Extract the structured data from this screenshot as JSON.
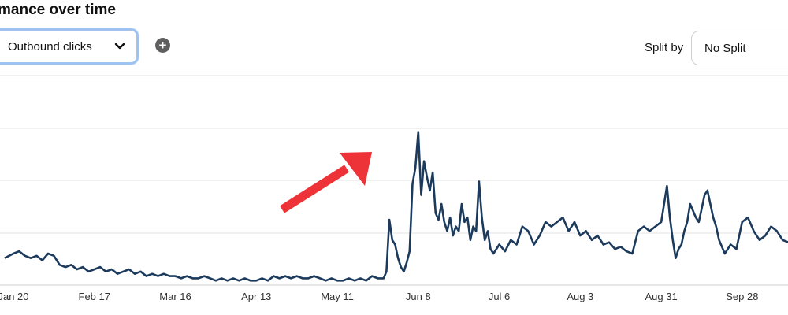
{
  "header": {
    "title": "mance over time"
  },
  "controls": {
    "metric_select": {
      "value": "Outbound clicks",
      "icon": "chevron-down-icon"
    },
    "add_button": {
      "glyph": "+",
      "icon": "plus-circle-icon"
    },
    "split_label": "Split by",
    "split_select": {
      "value": "No Split"
    }
  },
  "colors": {
    "line": "#1b3a5c",
    "grid": "#e3e3e3",
    "arrow": "#ee3338",
    "select_focus": "#9ec3f0"
  },
  "chart_data": {
    "type": "line",
    "title": "",
    "xlabel": "",
    "ylabel": "",
    "grid": true,
    "legend": "none",
    "x_tick_labels": [
      "Jan 20",
      "Feb 17",
      "Mar 16",
      "Apr 13",
      "May 11",
      "Jun 8",
      "Jul 6",
      "Aug 3",
      "Aug 31",
      "Sep 28"
    ],
    "x_tick_days": [
      0,
      28,
      56,
      84,
      112,
      140,
      168,
      196,
      224,
      252
    ],
    "ylim": [
      0,
      100
    ],
    "series": [
      {
        "values": [
          [
            -3,
            12
          ],
          [
            0,
            14
          ],
          [
            2,
            15
          ],
          [
            4,
            13
          ],
          [
            6,
            12
          ],
          [
            8,
            13
          ],
          [
            10,
            11
          ],
          [
            12,
            14
          ],
          [
            14,
            13
          ],
          [
            16,
            9
          ],
          [
            18,
            8
          ],
          [
            20,
            9
          ],
          [
            22,
            7
          ],
          [
            24,
            8
          ],
          [
            26,
            6
          ],
          [
            28,
            7
          ],
          [
            30,
            8
          ],
          [
            32,
            6
          ],
          [
            34,
            7
          ],
          [
            36,
            5
          ],
          [
            38,
            6
          ],
          [
            40,
            7
          ],
          [
            42,
            5
          ],
          [
            44,
            6
          ],
          [
            46,
            4
          ],
          [
            48,
            5
          ],
          [
            50,
            4
          ],
          [
            52,
            5
          ],
          [
            54,
            4
          ],
          [
            56,
            4
          ],
          [
            58,
            3
          ],
          [
            60,
            4
          ],
          [
            62,
            3
          ],
          [
            64,
            3
          ],
          [
            66,
            4
          ],
          [
            68,
            3
          ],
          [
            70,
            2
          ],
          [
            72,
            3
          ],
          [
            74,
            2
          ],
          [
            76,
            3
          ],
          [
            78,
            2
          ],
          [
            80,
            3
          ],
          [
            82,
            2
          ],
          [
            84,
            2
          ],
          [
            86,
            3
          ],
          [
            88,
            2
          ],
          [
            90,
            4
          ],
          [
            92,
            3
          ],
          [
            94,
            4
          ],
          [
            96,
            3
          ],
          [
            98,
            4
          ],
          [
            100,
            3
          ],
          [
            102,
            3
          ],
          [
            104,
            4
          ],
          [
            106,
            3
          ],
          [
            108,
            2
          ],
          [
            110,
            3
          ],
          [
            112,
            2
          ],
          [
            114,
            2
          ],
          [
            116,
            3
          ],
          [
            118,
            2
          ],
          [
            120,
            3
          ],
          [
            122,
            2
          ],
          [
            124,
            4
          ],
          [
            126,
            3
          ],
          [
            128,
            3
          ],
          [
            129,
            6
          ],
          [
            130,
            29
          ],
          [
            131,
            20
          ],
          [
            132,
            18
          ],
          [
            133,
            12
          ],
          [
            134,
            8
          ],
          [
            135,
            6
          ],
          [
            136,
            10
          ],
          [
            137,
            15
          ],
          [
            138,
            45
          ],
          [
            139,
            52
          ],
          [
            140,
            68
          ],
          [
            141,
            40
          ],
          [
            142,
            55
          ],
          [
            143,
            48
          ],
          [
            144,
            42
          ],
          [
            145,
            50
          ],
          [
            146,
            32
          ],
          [
            147,
            29
          ],
          [
            148,
            36
          ],
          [
            149,
            28
          ],
          [
            150,
            24
          ],
          [
            151,
            30
          ],
          [
            152,
            22
          ],
          [
            153,
            26
          ],
          [
            154,
            24
          ],
          [
            155,
            36
          ],
          [
            156,
            28
          ],
          [
            157,
            30
          ],
          [
            158,
            20
          ],
          [
            159,
            26
          ],
          [
            160,
            24
          ],
          [
            161,
            46
          ],
          [
            162,
            30
          ],
          [
            163,
            20
          ],
          [
            164,
            24
          ],
          [
            165,
            16
          ],
          [
            166,
            14
          ],
          [
            168,
            18
          ],
          [
            170,
            15
          ],
          [
            172,
            20
          ],
          [
            174,
            18
          ],
          [
            176,
            26
          ],
          [
            178,
            24
          ],
          [
            180,
            18
          ],
          [
            182,
            22
          ],
          [
            184,
            28
          ],
          [
            186,
            26
          ],
          [
            188,
            28
          ],
          [
            190,
            30
          ],
          [
            192,
            24
          ],
          [
            194,
            28
          ],
          [
            196,
            22
          ],
          [
            198,
            24
          ],
          [
            200,
            20
          ],
          [
            202,
            22
          ],
          [
            204,
            18
          ],
          [
            206,
            19
          ],
          [
            208,
            16
          ],
          [
            210,
            17
          ],
          [
            212,
            15
          ],
          [
            214,
            14
          ],
          [
            216,
            24
          ],
          [
            218,
            26
          ],
          [
            220,
            24
          ],
          [
            222,
            26
          ],
          [
            224,
            28
          ],
          [
            226,
            44
          ],
          [
            227,
            30
          ],
          [
            228,
            20
          ],
          [
            229,
            12
          ],
          [
            230,
            16
          ],
          [
            231,
            18
          ],
          [
            232,
            24
          ],
          [
            233,
            28
          ],
          [
            234,
            36
          ],
          [
            236,
            30
          ],
          [
            237,
            28
          ],
          [
            238,
            34
          ],
          [
            239,
            40
          ],
          [
            240,
            42
          ],
          [
            242,
            30
          ],
          [
            243,
            26
          ],
          [
            244,
            20
          ],
          [
            246,
            14
          ],
          [
            248,
            18
          ],
          [
            250,
            16
          ],
          [
            252,
            28
          ],
          [
            254,
            30
          ],
          [
            256,
            24
          ],
          [
            258,
            20
          ],
          [
            260,
            22
          ],
          [
            262,
            26
          ],
          [
            264,
            24
          ],
          [
            266,
            20
          ],
          [
            268,
            19
          ],
          [
            270,
            22
          ],
          [
            272,
            20
          ]
        ]
      }
    ]
  }
}
